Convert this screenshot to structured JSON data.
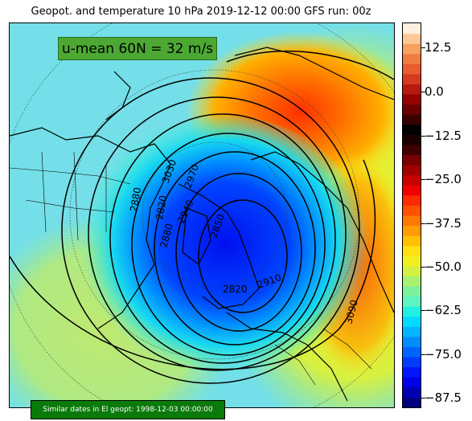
{
  "header": {
    "title": "Geopot. and temperature 10 hPa 2019-12-12 00:00 GFS run: 00z"
  },
  "map": {
    "umean_label": "u-mean 60N = 32 m/s",
    "similar_dates": "Similar dates in El geopt: 1998-12-03 00:00:00",
    "contour_labels": [
      "3030",
      "2970",
      "2940",
      "2850",
      "2910",
      "2880",
      "3090",
      "2820",
      "2820",
      "2880"
    ]
  },
  "colorbar": {
    "min": -90,
    "max": 20,
    "labels": [
      "12.5",
      "0.0",
      "−12.5",
      "−25.0",
      "−37.5",
      "−50.0",
      "−62.5",
      "−75.0",
      "−87.5"
    ],
    "colors": [
      "#000080",
      "#0000b3",
      "#0000e6",
      "#0016ff",
      "#003cff",
      "#0064ff",
      "#008cff",
      "#00b4ff",
      "#00dcff",
      "#20f0e0",
      "#5cf5c0",
      "#7cf09c",
      "#a8f070",
      "#d4f040",
      "#f0f020",
      "#ffe010",
      "#ffc000",
      "#ff9c00",
      "#ff7800",
      "#ff5000",
      "#ff2a00",
      "#f00000",
      "#c80000",
      "#a00000",
      "#780000",
      "#400000",
      "#1a0000",
      "#000000",
      "#3a0000",
      "#6a0000",
      "#950000",
      "#b81a10",
      "#d43a20",
      "#e85c30",
      "#f07c40",
      "#f8a060",
      "#fcc898",
      "#fef0e0"
    ]
  }
}
